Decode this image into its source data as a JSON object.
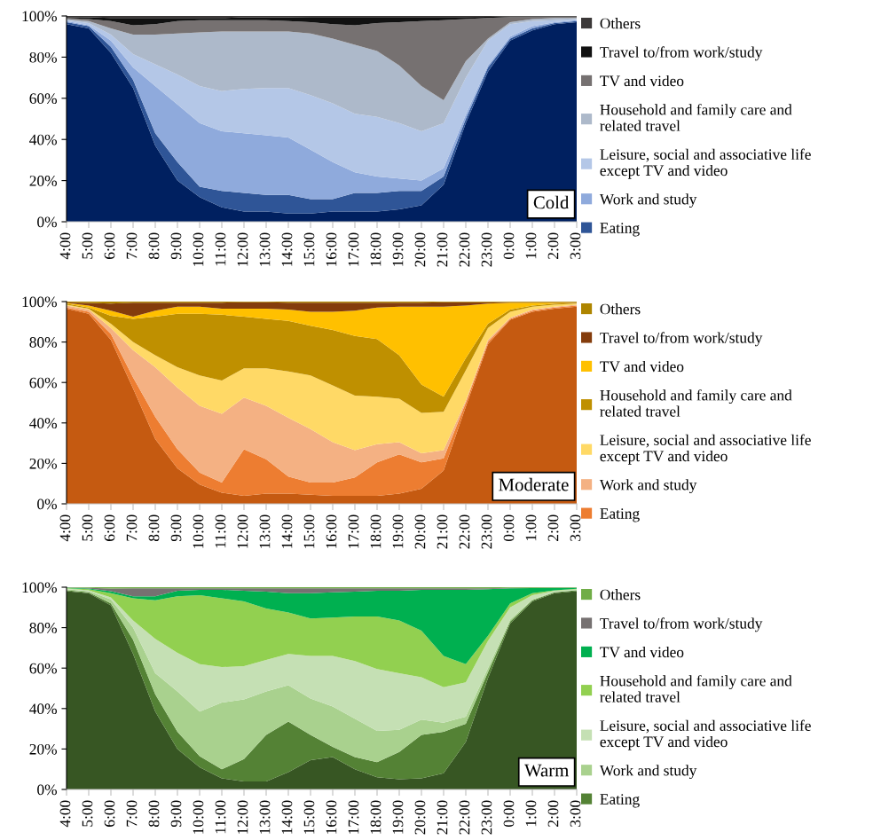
{
  "chart_data": [
    {
      "type": "area",
      "stacked": true,
      "title": "Cold",
      "legend": "right",
      "categories": [
        "4:00",
        "5:00",
        "6:00",
        "7:00",
        "8:00",
        "9:00",
        "10:00",
        "11:00",
        "12:00",
        "13:00",
        "14:00",
        "15:00",
        "16:00",
        "17:00",
        "18:00",
        "19:00",
        "20:00",
        "21:00",
        "22:00",
        "23:00",
        "0:00",
        "1:00",
        "2:00",
        "3:00"
      ],
      "ylim": [
        0,
        100
      ],
      "yticks": [
        {
          "value": 0,
          "label": "0%"
        },
        {
          "value": 20,
          "label": "20%"
        },
        {
          "value": 40,
          "label": "40%"
        },
        {
          "value": 60,
          "label": "60%"
        },
        {
          "value": 80,
          "label": "80%"
        },
        {
          "value": 100,
          "label": "100%"
        }
      ],
      "series": [
        {
          "color": "#002060",
          "values": [
            96,
            94,
            82,
            65,
            37,
            20,
            12,
            7,
            5,
            5,
            4,
            4,
            5,
            5,
            5,
            6,
            8,
            18,
            48,
            73,
            88,
            93,
            96,
            97
          ]
        },
        {
          "name": "Eating",
          "color": "#2f5597",
          "values": [
            1,
            1,
            3,
            4,
            6,
            9,
            5,
            8,
            9,
            8,
            9,
            7,
            6,
            9,
            9,
            9,
            7,
            4,
            2,
            2,
            1,
            1,
            0.5,
            0.5
          ]
        },
        {
          "name": "Work and study",
          "color": "#8faadc",
          "values": [
            0.5,
            0.5,
            3,
            6,
            23,
            28,
            31,
            29,
            29,
            29,
            28,
            24,
            18,
            10,
            8,
            6,
            5,
            4,
            2,
            1,
            1,
            1,
            0.5,
            0.5
          ]
        },
        {
          "name": "Leisure, social and associative life\nexcept TV and video",
          "color": "#b4c7e7",
          "values": [
            0.5,
            1,
            3,
            6.5,
            10.5,
            14.5,
            18,
            19.5,
            21.5,
            23,
            24,
            26.5,
            28.5,
            28.5,
            29,
            27,
            24,
            22,
            18,
            12,
            6,
            2.5,
            1,
            0.5
          ]
        },
        {
          "name": "Household and family care and\nrelated travel",
          "color": "#adb9ca",
          "values": [
            0.5,
            1,
            3,
            9.5,
            14.5,
            20,
            26,
            29,
            28,
            27.5,
            27.5,
            30,
            31.5,
            33.5,
            32,
            28,
            22,
            11,
            8,
            1,
            1,
            1,
            1,
            0.5
          ]
        },
        {
          "name": "TV and video",
          "color": "#767171",
          "values": [
            0.5,
            1,
            3.5,
            4.5,
            5,
            6,
            6,
            5.5,
            5.5,
            5.5,
            5,
            5.5,
            7,
            9.5,
            13.5,
            21,
            31.5,
            39,
            20.5,
            10,
            2.5,
            1,
            0.5,
            0.5
          ]
        },
        {
          "name": "Travel to/from work/study",
          "color": "#111111",
          "values": [
            0.5,
            0.8,
            1.5,
            3.5,
            3,
            1.5,
            1,
            1,
            1.3,
            1.3,
            1.8,
            2.5,
            3.5,
            4,
            3,
            2.5,
            2,
            1.5,
            1,
            0.6,
            0.2,
            0.2,
            0.2,
            0.2
          ]
        },
        {
          "name": "Others",
          "color": "#3b3838",
          "values": [
            0.5,
            0.7,
            1,
            1,
            1,
            1,
            1,
            1,
            0.7,
            0.7,
            0.7,
            0.5,
            0.5,
            0.5,
            0.5,
            0.5,
            0.5,
            0.5,
            0.5,
            0.4,
            0.3,
            0.3,
            0.3,
            0.3
          ]
        }
      ]
    },
    {
      "type": "area",
      "stacked": true,
      "title": "Moderate",
      "legend": "right",
      "categories": [
        "4:00",
        "5:00",
        "6:00",
        "7:00",
        "8:00",
        "9:00",
        "10:00",
        "11:00",
        "12:00",
        "13:00",
        "14:00",
        "15:00",
        "16:00",
        "17:00",
        "18:00",
        "19:00",
        "20:00",
        "21:00",
        "22:00",
        "23:00",
        "0:00",
        "1:00",
        "2:00",
        "3:00"
      ],
      "ylim": [
        0,
        100
      ],
      "yticks": [
        {
          "value": 0,
          "label": "0%"
        },
        {
          "value": 20,
          "label": "20%"
        },
        {
          "value": 40,
          "label": "40%"
        },
        {
          "value": 60,
          "label": "60%"
        },
        {
          "value": 80,
          "label": "80%"
        },
        {
          "value": 100,
          "label": "100%"
        }
      ],
      "series": [
        {
          "color": "#c55a11",
          "values": [
            96.5,
            94,
            81,
            57,
            32,
            17.5,
            9.5,
            5.5,
            4,
            5,
            5,
            4.5,
            4,
            4,
            4,
            5,
            7.5,
            16.5,
            48,
            79,
            91,
            95,
            96.5,
            97.5
          ]
        },
        {
          "name": "Eating",
          "color": "#ed7d31",
          "values": [
            0.5,
            1,
            3,
            5.5,
            11,
            9.5,
            6,
            5,
            23,
            17,
            8.5,
            6,
            6.5,
            9,
            16.5,
            19.5,
            13,
            6,
            2,
            1,
            0.5,
            0.5,
            0.5,
            0.5
          ]
        },
        {
          "name": "Work and study",
          "color": "#f4b183",
          "values": [
            1,
            1,
            3,
            13.5,
            24.5,
            30.5,
            33,
            34,
            25.5,
            26.5,
            29,
            26.5,
            20,
            13.5,
            9,
            6,
            4.5,
            4,
            1,
            1,
            0.5,
            0.5,
            0.5,
            0.5
          ]
        },
        {
          "name": "Leisure, social and associative life\nexcept TV and video",
          "color": "#ffd966",
          "values": [
            0.5,
            0.5,
            2,
            4,
            6,
            10,
            15,
            16.5,
            14.5,
            18.5,
            23,
            26.5,
            28,
            27,
            23.5,
            21.5,
            20,
            19,
            15,
            6,
            3,
            1.5,
            1,
            0.5
          ]
        },
        {
          "name": "Household and family care and\nrelated travel",
          "color": "#bf9000",
          "values": [
            0.5,
            0.5,
            4,
            11.5,
            19,
            26.5,
            30.5,
            32.5,
            25.5,
            24.5,
            25,
            24.5,
            27.5,
            29.5,
            28.5,
            21.5,
            14,
            7.5,
            6,
            2,
            1,
            0.5,
            0.5,
            0.3
          ]
        },
        {
          "name": "TV and video",
          "color": "#ffc000",
          "values": [
            0.3,
            1,
            2.5,
            1,
            3,
            3.5,
            3.5,
            3,
            4,
            5,
            5.5,
            7,
            9,
            12.5,
            15.5,
            24,
            38.5,
            44.5,
            26,
            10,
            3.5,
            1.5,
            0.5,
            0.2
          ]
        },
        {
          "name": "Travel to/from work/study",
          "color": "#843c0c",
          "values": [
            0.3,
            1.3,
            3.5,
            7,
            4,
            2,
            2,
            3,
            3.2,
            3.2,
            3.5,
            4.5,
            4.5,
            4,
            2.5,
            2,
            2,
            2.2,
            1.7,
            0.7,
            0.2,
            0.2,
            0.2,
            0.2
          ]
        },
        {
          "name": "Others",
          "color": "#ae8500",
          "values": [
            0.4,
            0.7,
            1,
            0.5,
            0.5,
            0.5,
            0.5,
            0.5,
            0.3,
            0.3,
            0.5,
            0.5,
            0.5,
            0.5,
            0.5,
            0.5,
            0.5,
            0.3,
            0.3,
            0.3,
            0.3,
            0.3,
            0.3,
            0.3
          ]
        }
      ]
    },
    {
      "type": "area",
      "stacked": true,
      "title": "Warm",
      "legend": "right",
      "categories": [
        "4:00",
        "5:00",
        "6:00",
        "7:00",
        "8:00",
        "9:00",
        "10:00",
        "11:00",
        "12:00",
        "13:00",
        "14:00",
        "15:00",
        "16:00",
        "17:00",
        "18:00",
        "19:00",
        "20:00",
        "21:00",
        "22:00",
        "23:00",
        "0:00",
        "1:00",
        "2:00",
        "3:00"
      ],
      "ylim": [
        0,
        100
      ],
      "yticks": [
        {
          "value": 0,
          "label": "0%"
        },
        {
          "value": 20,
          "label": "20%"
        },
        {
          "value": 40,
          "label": "40%"
        },
        {
          "value": 60,
          "label": "60%"
        },
        {
          "value": 80,
          "label": "80%"
        },
        {
          "value": 100,
          "label": "100%"
        }
      ],
      "series": [
        {
          "color": "#375623",
          "values": [
            98,
            97,
            91,
            67,
            38.5,
            20,
            11,
            5.5,
            4,
            4,
            8.5,
            14.5,
            16,
            10,
            6,
            5,
            5.5,
            8,
            23.5,
            55,
            82,
            93,
            97,
            98
          ]
        },
        {
          "name": "Eating",
          "color": "#548235",
          "values": [
            0.5,
            0.5,
            1,
            7,
            8.5,
            8.5,
            5.5,
            4.5,
            11,
            23,
            25,
            12.5,
            5,
            6,
            7.5,
            13.5,
            21.5,
            20.5,
            9,
            3,
            1,
            0.5,
            0.5,
            0.5
          ]
        },
        {
          "name": "Work and study",
          "color": "#a9d18e",
          "values": [
            0.5,
            0.5,
            2,
            6,
            10.5,
            20,
            22,
            33,
            29.5,
            21.5,
            18,
            18,
            20,
            19,
            15.5,
            11,
            7.5,
            4.5,
            3.5,
            2,
            1,
            0.5,
            0.2,
            0.2
          ]
        },
        {
          "name": "Leisure, social and associative life\nexcept TV and video",
          "color": "#c5e0b4",
          "values": [
            0.3,
            0.5,
            1,
            3.5,
            17,
            19,
            23.5,
            17.5,
            16.5,
            15.5,
            15.5,
            21,
            25,
            28.5,
            30.5,
            28,
            21,
            17.5,
            17,
            13.5,
            6,
            2,
            0.5,
            0.3
          ]
        },
        {
          "name": "Household and family care and\nrelated travel",
          "color": "#92d050",
          "values": [
            0.3,
            0.5,
            2,
            11,
            19,
            28,
            34,
            34,
            32,
            25.5,
            20.5,
            18.5,
            19,
            22,
            26,
            26,
            23,
            15.5,
            9,
            2.5,
            2,
            1,
            0.3,
            0.2
          ]
        },
        {
          "name": "TV and video",
          "color": "#00b050",
          "values": [
            0.2,
            0.3,
            1,
            1,
            2,
            2.8,
            2.7,
            4.2,
            5.3,
            8.3,
            9.5,
            12.5,
            12.5,
            12.3,
            12.7,
            14.8,
            20.2,
            32.7,
            36.7,
            23,
            7.5,
            2.6,
            1.2,
            0.5
          ]
        },
        {
          "name": "Travel to/from work/study",
          "color": "#767171",
          "values": [
            0.1,
            0.4,
            1.3,
            4,
            4,
            1.2,
            0.8,
            0.8,
            1.2,
            1.7,
            2.5,
            2.5,
            2,
            1.7,
            1.3,
            1.2,
            0.8,
            0.8,
            0.8,
            0.5,
            0.2,
            0.1,
            0.1,
            0.1
          ]
        },
        {
          "name": "Others",
          "color": "#70ad47",
          "values": [
            0.1,
            0.3,
            0.7,
            0.5,
            0.5,
            0.5,
            0.5,
            0.5,
            0.5,
            0.5,
            0.5,
            0.5,
            0.5,
            0.5,
            0.5,
            0.5,
            0.5,
            0.5,
            0.5,
            0.5,
            0.3,
            0.3,
            0.2,
            0.2
          ]
        }
      ]
    }
  ]
}
